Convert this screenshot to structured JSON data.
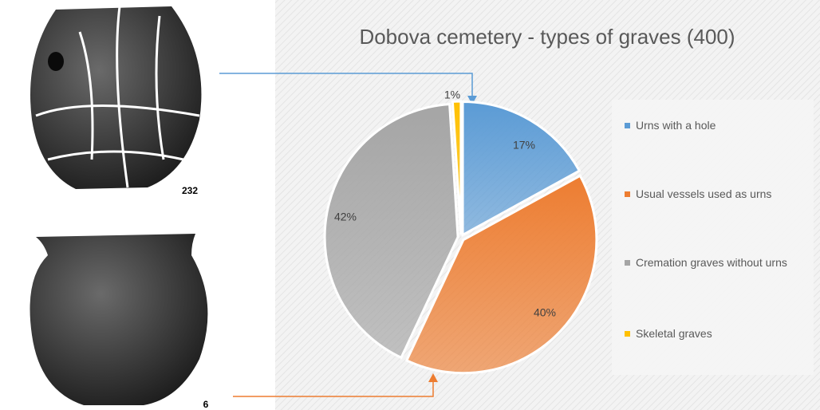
{
  "chart_data": {
    "type": "pie",
    "title": "Dobova cemetery - types of graves (400)",
    "categories": [
      "Urns with a hole",
      "Usual vessels used as urns",
      "Cremation graves without urns",
      "Skeletal graves"
    ],
    "values": [
      17,
      40,
      42,
      1
    ],
    "value_labels": [
      "17%",
      "40%",
      "42%",
      "1%"
    ],
    "colors": [
      "#5b9bd5",
      "#ed7d31",
      "#a5a5a5",
      "#ffc000"
    ],
    "annotations": [
      "232",
      "6"
    ]
  }
}
